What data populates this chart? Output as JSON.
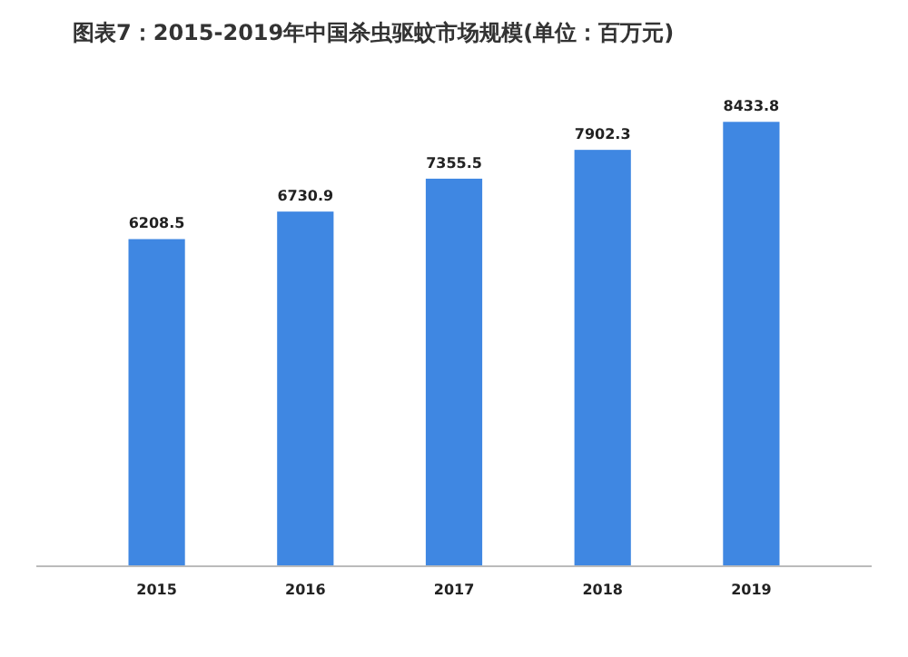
{
  "chart_data": {
    "type": "bar",
    "title": "图表7：2015-2019年中国杀虫驱蚊市场规模(单位：百万元)",
    "categories": [
      "2015",
      "2016",
      "2017",
      "2018",
      "2019"
    ],
    "values": [
      6208.5,
      6730.9,
      7355.5,
      7902.3,
      8433.8
    ],
    "color": "#3f87e2",
    "data_labels": true
  }
}
